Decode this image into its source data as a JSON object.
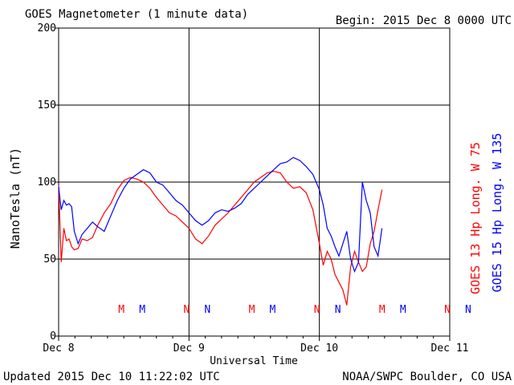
{
  "chart_data": {
    "type": "line",
    "title": "GOES Magnetometer (1 minute data)",
    "begin": "Begin:  2015 Dec 8 0000 UTC",
    "xlabel": "Universal Time",
    "ylabel": "NanoTesla (nT)",
    "x_ticks": [
      "Dec 8",
      "Dec 9",
      "Dec 10",
      "Dec 11"
    ],
    "x_range_days": [
      0,
      3
    ],
    "ylim": [
      0,
      200
    ],
    "y_ticks": [
      0,
      50,
      100,
      150,
      200
    ],
    "grid": true,
    "legend": "right side, rotated",
    "footer_left": "Updated 2015 Dec 10 11:22:02 UTC",
    "footer_right": "NOAA/SWPC Boulder, CO USA",
    "markers": [
      {
        "label": "M",
        "day": 0.5,
        "series": "GOES 13"
      },
      {
        "label": "M",
        "day": 0.66,
        "series": "GOES 15"
      },
      {
        "label": "N",
        "day": 1.0,
        "series": "GOES 13"
      },
      {
        "label": "N",
        "day": 1.16,
        "series": "GOES 15"
      },
      {
        "label": "M",
        "day": 1.5,
        "series": "GOES 13"
      },
      {
        "label": "M",
        "day": 1.66,
        "series": "GOES 15"
      },
      {
        "label": "N",
        "day": 2.0,
        "series": "GOES 13"
      },
      {
        "label": "N",
        "day": 2.16,
        "series": "GOES 15"
      },
      {
        "label": "M",
        "day": 2.5,
        "series": "GOES 13"
      },
      {
        "label": "M",
        "day": 2.66,
        "series": "GOES 15"
      },
      {
        "label": "N",
        "day": 3.0,
        "series": "GOES 13"
      },
      {
        "label": "N",
        "day": 3.16,
        "series": "GOES 15"
      }
    ],
    "series": [
      {
        "name": "GOES 13 Hp  Long. W 75",
        "color": "#ff0000",
        "x": [
          0.0,
          0.02,
          0.04,
          0.06,
          0.08,
          0.1,
          0.12,
          0.15,
          0.18,
          0.22,
          0.26,
          0.3,
          0.35,
          0.4,
          0.45,
          0.5,
          0.55,
          0.6,
          0.65,
          0.7,
          0.75,
          0.8,
          0.85,
          0.9,
          0.95,
          1.0,
          1.05,
          1.1,
          1.15,
          1.2,
          1.25,
          1.3,
          1.35,
          1.4,
          1.45,
          1.5,
          1.55,
          1.6,
          1.65,
          1.7,
          1.75,
          1.8,
          1.85,
          1.9,
          1.95,
          2.0,
          2.03,
          2.06,
          2.09,
          2.12,
          2.15,
          2.18,
          2.21,
          2.24,
          2.27,
          2.3,
          2.33,
          2.36,
          2.39,
          2.42,
          2.45,
          2.48
        ],
        "values": [
          98,
          48,
          70,
          62,
          63,
          58,
          56,
          57,
          63,
          62,
          64,
          72,
          80,
          86,
          95,
          101,
          103,
          102,
          100,
          96,
          90,
          85,
          80,
          78,
          74,
          70,
          63,
          60,
          65,
          72,
          76,
          80,
          85,
          90,
          95,
          100,
          103,
          106,
          107,
          106,
          100,
          96,
          97,
          93,
          82,
          60,
          46,
          55,
          50,
          40,
          35,
          30,
          20,
          45,
          55,
          48,
          42,
          45,
          60,
          68,
          82,
          95
        ]
      },
      {
        "name": "GOES 15 Hp  Long. W 135",
        "color": "#0000ff",
        "x": [
          0.0,
          0.02,
          0.04,
          0.06,
          0.08,
          0.1,
          0.12,
          0.15,
          0.18,
          0.22,
          0.26,
          0.3,
          0.35,
          0.4,
          0.45,
          0.5,
          0.55,
          0.6,
          0.65,
          0.7,
          0.75,
          0.8,
          0.85,
          0.9,
          0.95,
          1.0,
          1.05,
          1.1,
          1.15,
          1.2,
          1.25,
          1.3,
          1.35,
          1.4,
          1.45,
          1.5,
          1.55,
          1.6,
          1.65,
          1.7,
          1.75,
          1.8,
          1.85,
          1.9,
          1.95,
          2.0,
          2.03,
          2.06,
          2.09,
          2.12,
          2.15,
          2.18,
          2.21,
          2.24,
          2.27,
          2.3,
          2.33,
          2.36,
          2.39,
          2.42,
          2.45,
          2.48
        ],
        "values": [
          97,
          82,
          88,
          85,
          86,
          84,
          68,
          60,
          66,
          70,
          74,
          71,
          68,
          78,
          88,
          96,
          102,
          105,
          108,
          106,
          100,
          98,
          93,
          88,
          85,
          80,
          75,
          72,
          75,
          80,
          82,
          81,
          83,
          86,
          92,
          96,
          100,
          104,
          108,
          112,
          113,
          116,
          114,
          110,
          105,
          95,
          85,
          70,
          65,
          58,
          52,
          60,
          68,
          50,
          42,
          48,
          100,
          88,
          80,
          58,
          52,
          70
        ]
      }
    ]
  }
}
